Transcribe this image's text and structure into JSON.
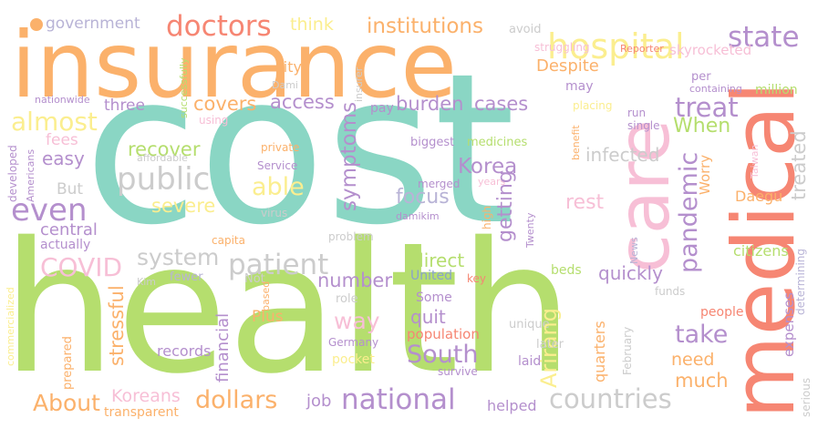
{
  "colors": {
    "teal": "#8ad6c4",
    "lime": "#b5de6e",
    "orange": "#fbb16b",
    "pink": "#f7bfd6",
    "salmon": "#f68673",
    "purple": "#b48fcd",
    "lavender": "#b8b3d6",
    "grey": "#cccccc",
    "yellow": "#fbee8f",
    "peach": "#fbd39f",
    "blue": "#8aa3c9"
  },
  "words": {
    "cost": "cost",
    "health": "health",
    "insurance": "insurance",
    "medical": "medical",
    "care": "care",
    "hospital": "hospital",
    "state": "state",
    "doctors": "doctors",
    "government": "government",
    "institutions": "institutions",
    "think": "think",
    "avoid": "avoid",
    "Reporter": "Reporter",
    "struggling": "struggling",
    "skyrocketed": "skyrocketed",
    "Despite": "Despite",
    "city": "city",
    "Dami": "Dami",
    "insurer": "insurer",
    "per": "per",
    "containing": "containing",
    "million": "million",
    "nationwide": "nationwide",
    "successfully": "successfully",
    "covers": "covers",
    "access": "access",
    "treat": "treat",
    "almost": "almost",
    "three": "three",
    "using": "using",
    "pay": "pay",
    "burden": "burden",
    "cases": "cases",
    "may": "may",
    "run": "run",
    "single": "single",
    "placing": "placing",
    "When": "When",
    "fees": "fees",
    "developed": "developed",
    "Americans": "Americans",
    "easy": "easy",
    "recover": "recover",
    "public": "public",
    "affordable": "affordable",
    "symptoms": "symptoms",
    "biggest": "biggest",
    "medicines": "medicines",
    "benefit": "benefit",
    "infected": "infected",
    "Korea": "Korea",
    "But": "But",
    "private": "private",
    "Service": "Service",
    "Worry": "Worry",
    "severe": "severe",
    "able": "able",
    "even": "even",
    "focus": "focus",
    "rest": "rest",
    "treated": "treated",
    "Daegu": "Daegu",
    "merged": "merged",
    "years": "years",
    "Taiwan": "Taiwan",
    "virus": "virus",
    "damikim": "damikim",
    "high": "high",
    "central": "central",
    "capita": "capita",
    "getting": "getting",
    "Twenty": "Twenty",
    "problem": "problem",
    "COVID": "COVID",
    "system": "system",
    "patient": "patient",
    "pandemic": "pandemic",
    "citizens": "citizens",
    "actually": "actually",
    "direct": "direct",
    "beds": "beds",
    "fewer": "fewer",
    "Kim": "Kim",
    "Not": "Not",
    "financial": "financial",
    "number": "number",
    "United": "United",
    "key": "key",
    "News": "News",
    "quickly": "quickly",
    "funds": "funds",
    "people": "people",
    "determining": "determining",
    "expenses": "expenses",
    "commercialized": "commercialized",
    "way": "way",
    "quit": "quit",
    "role": "role",
    "Some": "Some",
    "based": "based",
    "Plus": "Plus",
    "unique": "unique",
    "stressful": "stressful",
    "population": "population",
    "Germany": "Germany",
    "Arirang": "Arirang",
    "take": "take",
    "records": "records",
    "South": "South",
    "pocket": "pocket",
    "later": "later",
    "February": "February",
    "need": "need",
    "serious": "serious",
    "prepared": "prepared",
    "laid": "laid",
    "quarters": "quarters",
    "much": "much",
    "survive": "survive",
    "About": "About",
    "Koreans": "Koreans",
    "dollars": "dollars",
    "job": "job",
    "national": "national",
    "countries": "countries",
    "transparent": "transparent",
    "helped": "helped"
  }
}
